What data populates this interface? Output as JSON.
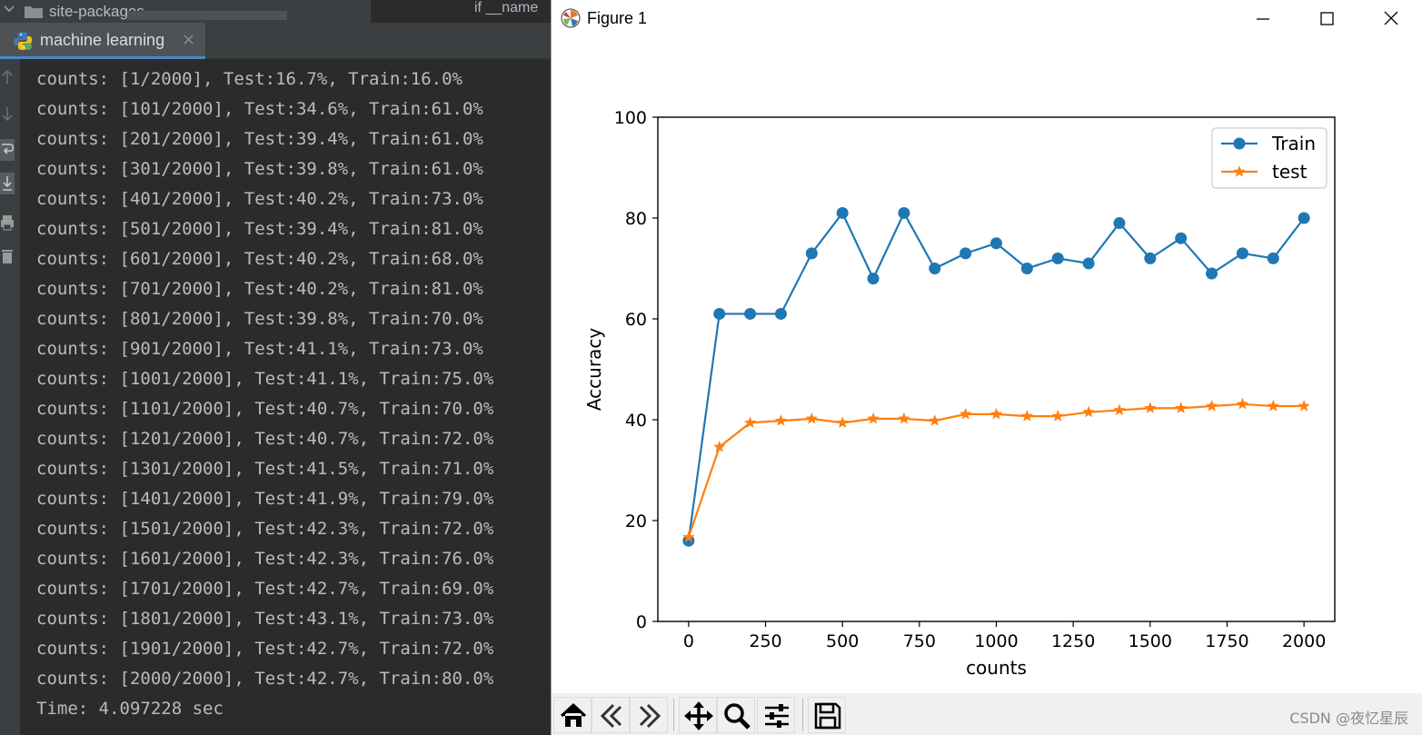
{
  "ide": {
    "tree_item": "site-packages",
    "editor_fragment": "if __name",
    "tab_label": "machine learning",
    "tab_close": "×",
    "console_lines": [
      "counts: [1/2000], Test:16.7%, Train:16.0%",
      "counts: [101/2000], Test:34.6%, Train:61.0%",
      "counts: [201/2000], Test:39.4%, Train:61.0%",
      "counts: [301/2000], Test:39.8%, Train:61.0%",
      "counts: [401/2000], Test:40.2%, Train:73.0%",
      "counts: [501/2000], Test:39.4%, Train:81.0%",
      "counts: [601/2000], Test:40.2%, Train:68.0%",
      "counts: [701/2000], Test:40.2%, Train:81.0%",
      "counts: [801/2000], Test:39.8%, Train:70.0%",
      "counts: [901/2000], Test:41.1%, Train:73.0%",
      "counts: [1001/2000], Test:41.1%, Train:75.0%",
      "counts: [1101/2000], Test:40.7%, Train:70.0%",
      "counts: [1201/2000], Test:40.7%, Train:72.0%",
      "counts: [1301/2000], Test:41.5%, Train:71.0%",
      "counts: [1401/2000], Test:41.9%, Train:79.0%",
      "counts: [1501/2000], Test:42.3%, Train:72.0%",
      "counts: [1601/2000], Test:42.3%, Train:76.0%",
      "counts: [1701/2000], Test:42.7%, Train:69.0%",
      "counts: [1801/2000], Test:43.1%, Train:73.0%",
      "counts: [1901/2000], Test:42.7%, Train:72.0%",
      "counts: [2000/2000], Test:42.7%, Train:80.0%",
      "Time: 4.097228 sec"
    ]
  },
  "figure": {
    "window_title": "Figure 1",
    "watermark": "CSDN @夜忆星辰"
  },
  "colors": {
    "train": "#1f77b4",
    "test": "#ff7f0e",
    "console_text": "#bbbbbb",
    "ide_bg": "#2b2b2b"
  },
  "icons": {
    "toolbar": [
      "home-icon",
      "back-arrow-icon",
      "forward-arrow-icon",
      "pan-move-icon",
      "zoom-magnifier-icon",
      "configure-subplots-icon",
      "save-figure-icon"
    ]
  },
  "chart_data": {
    "type": "line",
    "title": "",
    "xlabel": "counts",
    "ylabel": "Accuracy",
    "xlim": [
      -100,
      2100
    ],
    "ylim": [
      0,
      100
    ],
    "xticks": [
      0,
      250,
      500,
      750,
      1000,
      1250,
      1500,
      1750,
      2000
    ],
    "yticks": [
      0,
      20,
      40,
      60,
      80,
      100
    ],
    "grid": false,
    "legend": "top-right",
    "x": [
      0,
      100,
      200,
      300,
      400,
      500,
      600,
      700,
      800,
      900,
      1000,
      1100,
      1200,
      1300,
      1400,
      1500,
      1600,
      1700,
      1800,
      1900,
      2000
    ],
    "series": [
      {
        "name": "Train",
        "marker": "circle",
        "values": [
          16.0,
          61.0,
          61.0,
          61.0,
          73.0,
          81.0,
          68.0,
          81.0,
          70.0,
          73.0,
          75.0,
          70.0,
          72.0,
          71.0,
          79.0,
          72.0,
          76.0,
          69.0,
          73.0,
          72.0,
          80.0
        ]
      },
      {
        "name": "test",
        "marker": "star",
        "values": [
          16.7,
          34.6,
          39.4,
          39.8,
          40.2,
          39.4,
          40.2,
          40.2,
          39.8,
          41.1,
          41.1,
          40.7,
          40.7,
          41.5,
          41.9,
          42.3,
          42.3,
          42.7,
          43.1,
          42.7,
          42.7
        ]
      }
    ]
  }
}
